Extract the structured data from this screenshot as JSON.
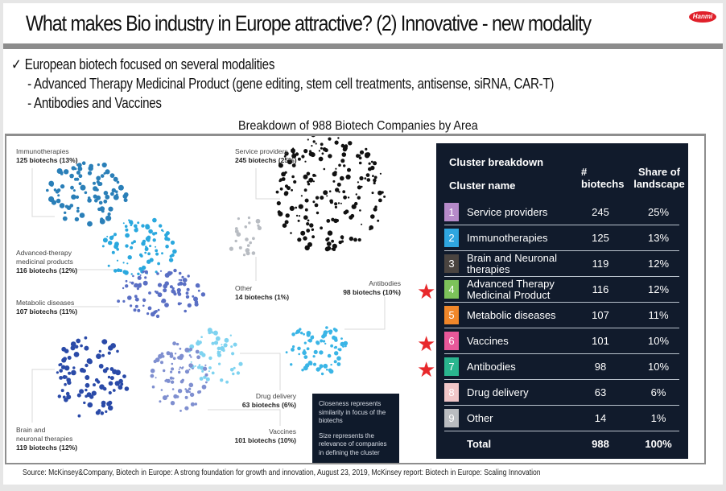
{
  "header": {
    "title": "What makes Bio industry in Europe attractive?  (2) Innovative  - new modality",
    "logo_text": "Hanmi"
  },
  "bullets": [
    {
      "icon": "checkmark-icon",
      "text": "European biotech focused on several modalities",
      "level": 0
    },
    {
      "text": "- Advanced Therapy Medicinal Product (gene editing, stem cell treatments, antisense, siRNA, CAR-T)",
      "level": 1
    },
    {
      "text": "- Antibodies and Vaccines",
      "level": 1
    }
  ],
  "figure": {
    "title": "Breakdown of 988 Biotech Companies by Area",
    "cluster_labels": [
      {
        "name": "Immunotherapies",
        "count": "125 biotechs (13%)"
      },
      {
        "name": "Service providers",
        "count": "245 biotechs (25%)"
      },
      {
        "name": "Advanced-therapy",
        "name2": "medicinal products",
        "count": "116 biotechs (12%)"
      },
      {
        "name": "Metabolic diseases",
        "count": "107 biotechs (11%)"
      },
      {
        "name": "Other",
        "count": "14 biotechs (1%)"
      },
      {
        "name": "Antibodies",
        "count": "98 biotechs (10%)"
      },
      {
        "name": "Drug delivery",
        "count": "63 biotechs (6%)"
      },
      {
        "name": "Vaccines",
        "count": "101 biotechs (10%)"
      },
      {
        "name": "Brain and",
        "name2": "neuronal therapies",
        "count": "119 biotechs (12%)"
      }
    ],
    "note": {
      "line1": "Closeness represents similarity in focus of the biotechs",
      "line2": "Size represents the relevance of companies in defining the cluster"
    },
    "cluster_colors": {
      "service": "#111111",
      "immuno": "#2a7fb8",
      "atmp": "#2aa8de",
      "metabolic": "#5a6fc4",
      "brain": "#2a4aa8",
      "vaccines": "#7f8fd0",
      "antibodies": "#3ab5e6",
      "drug": "#7fd3f0",
      "other": "#b8bcc2"
    }
  },
  "table": {
    "title": "Cluster breakdown",
    "col_name": "Cluster name",
    "col_count": "# biotechs",
    "col_share": "Share of landscape",
    "rows": [
      {
        "num": "1",
        "name": "Service providers",
        "count": "245",
        "share": "25%",
        "color": "#b58ac9",
        "starred": false
      },
      {
        "num": "2",
        "name": "Immunotherapies",
        "count": "125",
        "share": "13%",
        "color": "#2fa6e0",
        "starred": false
      },
      {
        "num": "3",
        "name": "Brain and Neuronal therapies",
        "count": "119",
        "share": "12%",
        "color": "#4a4440",
        "starred": false
      },
      {
        "num": "4",
        "name": "Advanced Therapy Medicinal Product",
        "count": "116",
        "share": "12%",
        "color": "#7cc25a",
        "starred": true
      },
      {
        "num": "5",
        "name": "Metabolic diseases",
        "count": "107",
        "share": "11%",
        "color": "#f0872a",
        "starred": false
      },
      {
        "num": "6",
        "name": "Vaccines",
        "count": "101",
        "share": "10%",
        "color": "#e8589a",
        "starred": true
      },
      {
        "num": "7",
        "name": "Antibodies",
        "count": "98",
        "share": "10%",
        "color": "#2ab58e",
        "starred": true
      },
      {
        "num": "8",
        "name": "Drug delivery",
        "count": "63",
        "share": "6%",
        "color": "#f0c6c8",
        "starred": false
      },
      {
        "num": "9",
        "name": "Other",
        "count": "14",
        "share": "1%",
        "color": "#b9bcc0",
        "starred": false
      }
    ],
    "total": {
      "name": "Total",
      "count": "988",
      "share": "100%"
    }
  },
  "star_glyph": "★",
  "source": "Source: McKinsey&Company, Biotech in Europe: A strong foundation for growth and innovation, August 23, 2019, McKinsey report:  Biotech in Europe: Scaling Innovation"
}
